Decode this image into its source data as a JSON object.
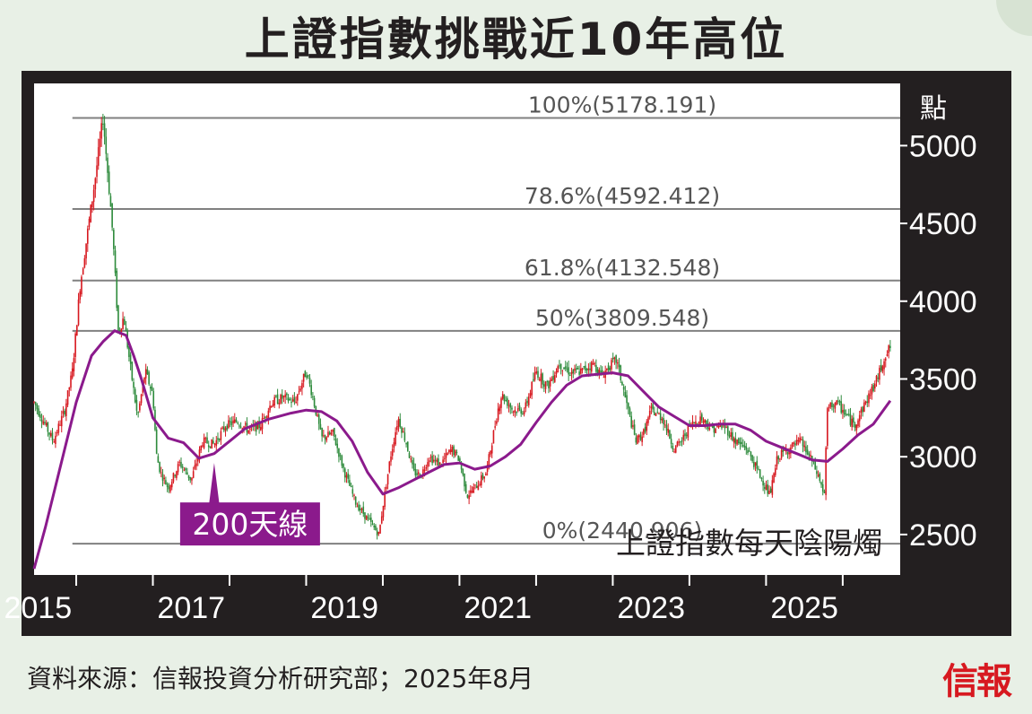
{
  "title": "上證指數挑戰近10年高位",
  "source": "資料來源：信報投資分析研究部；2025年8月",
  "logo": "信報",
  "colors": {
    "frame": "#231f20",
    "plot_bg": "#ffffff",
    "candle_up": "#d71920",
    "candle_down": "#2e8b3c",
    "ma_line": "#8b1a8c",
    "fib_line": "#808080",
    "label_purple": "#8b1a8c"
  },
  "chart_data": {
    "type": "line",
    "title": "上證指數挑戰近10年高位",
    "legend_text": "上證指數每天陰陽燭",
    "ylabel": "點",
    "ylim": [
      2240,
      5400
    ],
    "xlim": [
      2014.45,
      2025.75
    ],
    "y_ticks": [
      2500,
      3000,
      3500,
      4000,
      4500,
      5000
    ],
    "x_ticks": [
      2015,
      2017,
      2019,
      2021,
      2023,
      2025
    ],
    "x_tick_labels": [
      "2015",
      "2017",
      "2019",
      "2021",
      "2023",
      "2025"
    ],
    "fib_levels": [
      {
        "label": "100%(5178.191)",
        "value": 5178.191
      },
      {
        "label": "78.6%(4592.412)",
        "value": 4592.412
      },
      {
        "label": "61.8%(4132.548)",
        "value": 4132.548
      },
      {
        "label": "50%(3809.548)",
        "value": 3809.548
      },
      {
        "label": "0%(2440.906)",
        "value": 2440.906
      }
    ],
    "annotation": "200天線",
    "series": [
      {
        "name": "上證指數每天陰陽燭",
        "x": [
          2014.45,
          2014.55,
          2014.7,
          2014.85,
          2014.95,
          2015.05,
          2015.15,
          2015.25,
          2015.35,
          2015.45,
          2015.48,
          2015.55,
          2015.62,
          2015.7,
          2015.8,
          2015.9,
          2016.0,
          2016.05,
          2016.1,
          2016.2,
          2016.35,
          2016.5,
          2016.65,
          2016.8,
          2016.95,
          2017.1,
          2017.25,
          2017.4,
          2017.55,
          2017.7,
          2017.85,
          2018.0,
          2018.08,
          2018.2,
          2018.35,
          2018.5,
          2018.65,
          2018.8,
          2018.95,
          2019.0,
          2019.1,
          2019.2,
          2019.3,
          2019.4,
          2019.5,
          2019.6,
          2019.75,
          2019.9,
          2020.0,
          2020.1,
          2020.2,
          2020.35,
          2020.5,
          2020.55,
          2020.7,
          2020.85,
          2021.0,
          2021.15,
          2021.3,
          2021.45,
          2021.6,
          2021.75,
          2021.85,
          2021.95,
          2022.05,
          2022.2,
          2022.3,
          2022.4,
          2022.5,
          2022.65,
          2022.8,
          2022.9,
          2023.0,
          2023.15,
          2023.3,
          2023.45,
          2023.6,
          2023.75,
          2023.9,
          2024.0,
          2024.05,
          2024.15,
          2024.3,
          2024.45,
          2024.6,
          2024.7,
          2024.76,
          2024.8,
          2024.9,
          2025.0,
          2025.15,
          2025.3,
          2025.45,
          2025.55,
          2025.62
        ],
        "values": [
          3350,
          3250,
          3100,
          3300,
          3550,
          4100,
          4450,
          4800,
          5178,
          4600,
          4400,
          3800,
          3900,
          3600,
          3250,
          3550,
          3400,
          3000,
          2900,
          2800,
          2960,
          2850,
          3100,
          3080,
          3200,
          3230,
          3170,
          3200,
          3350,
          3380,
          3350,
          3550,
          3400,
          3120,
          3150,
          2900,
          2700,
          2600,
          2500,
          2680,
          3000,
          3250,
          3100,
          2900,
          2880,
          3000,
          2950,
          3050,
          2980,
          2750,
          2800,
          2900,
          3300,
          3400,
          3300,
          3300,
          3550,
          3450,
          3600,
          3540,
          3550,
          3600,
          3520,
          3580,
          3620,
          3300,
          3100,
          3150,
          3300,
          3250,
          3050,
          3100,
          3200,
          3250,
          3180,
          3200,
          3100,
          3050,
          2900,
          2800,
          2750,
          3000,
          3050,
          3100,
          2970,
          2850,
          2750,
          3300,
          3350,
          3300,
          3200,
          3350,
          3500,
          3650,
          3700
        ]
      },
      {
        "name": "200天線",
        "x": [
          2014.45,
          2014.6,
          2014.8,
          2015.0,
          2015.2,
          2015.35,
          2015.5,
          2015.65,
          2015.75,
          2015.85,
          2016.0,
          2016.2,
          2016.4,
          2016.6,
          2016.8,
          2017.0,
          2017.2,
          2017.5,
          2017.8,
          2018.0,
          2018.2,
          2018.4,
          2018.6,
          2018.8,
          2019.0,
          2019.2,
          2019.4,
          2019.6,
          2019.8,
          2020.0,
          2020.2,
          2020.4,
          2020.6,
          2020.8,
          2021.0,
          2021.2,
          2021.4,
          2021.6,
          2021.8,
          2022.0,
          2022.2,
          2022.4,
          2022.6,
          2022.8,
          2023.0,
          2023.2,
          2023.4,
          2023.6,
          2023.8,
          2024.0,
          2024.2,
          2024.4,
          2024.6,
          2024.8,
          2025.0,
          2025.2,
          2025.4,
          2025.62
        ],
        "values": [
          2280,
          2550,
          2950,
          3350,
          3650,
          3740,
          3810,
          3780,
          3650,
          3500,
          3250,
          3120,
          3090,
          2990,
          3020,
          3100,
          3180,
          3240,
          3280,
          3300,
          3290,
          3230,
          3100,
          2900,
          2760,
          2800,
          2850,
          2900,
          2950,
          2960,
          2920,
          2940,
          3000,
          3080,
          3220,
          3350,
          3460,
          3520,
          3530,
          3540,
          3520,
          3420,
          3320,
          3260,
          3200,
          3200,
          3210,
          3210,
          3170,
          3100,
          3060,
          3020,
          2980,
          2970,
          3050,
          3140,
          3210,
          3360
        ]
      }
    ]
  }
}
